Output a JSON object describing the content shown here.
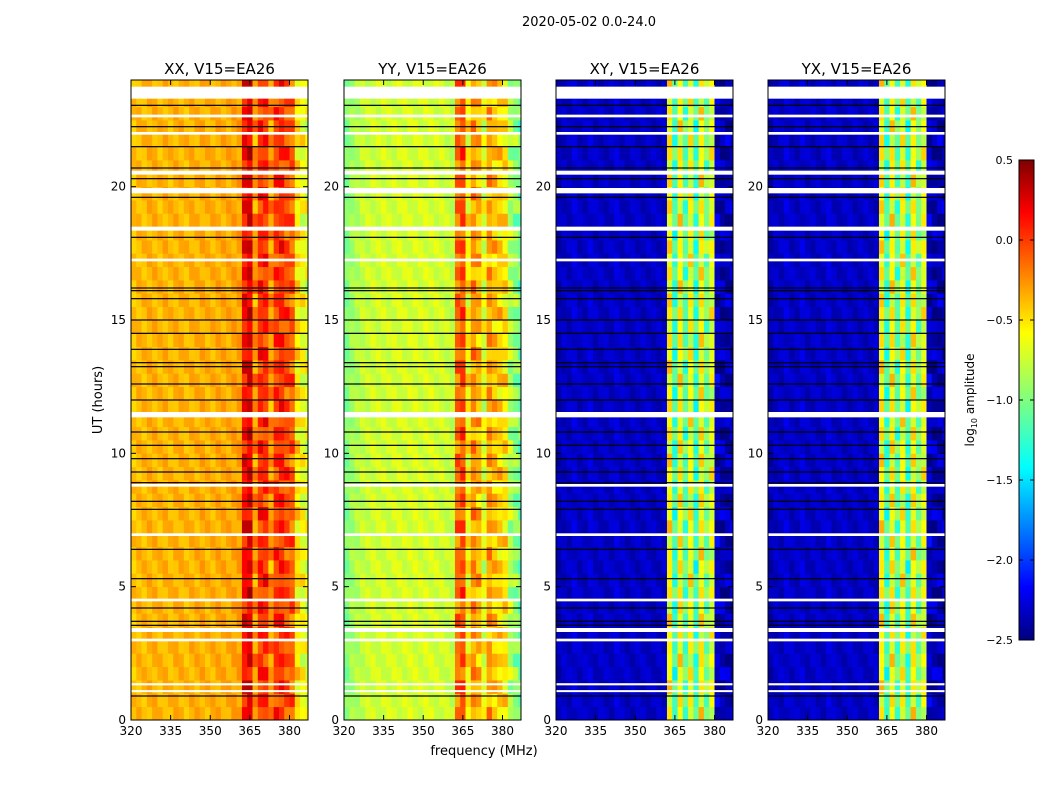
{
  "chart_data": {
    "type": "heatmap",
    "title": "2020-05-02 0.0-24.0",
    "xlabel": "frequency (MHz)",
    "ylabel": "UT (hours)",
    "xlim": [
      320,
      387
    ],
    "ylim": [
      0,
      24
    ],
    "xticks": [
      "320",
      "335",
      "350",
      "365",
      "380"
    ],
    "yticks": [
      "0",
      "5",
      "10",
      "15",
      "20"
    ],
    "colorbar": {
      "label": "log10 amplitude",
      "label_main": "log",
      "label_sub": "10",
      "label_rest": " amplitude",
      "range": [
        -2.5,
        0.5
      ],
      "ticks": [
        "0.5",
        "0.0",
        "−0.5",
        "−1.0",
        "−1.5",
        "−2.0",
        "−2.5"
      ],
      "colormap": "jet"
    },
    "frequency_bin_start": 320,
    "frequency_bin_width": 2,
    "time_bin_width": 0.5,
    "panels": [
      {
        "title": "XX, V15=EA26",
        "profile": [
          -0.45,
          -0.42,
          -0.42,
          -0.4,
          -0.4,
          -0.42,
          -0.4,
          -0.42,
          -0.4,
          -0.4,
          -0.42,
          -0.4,
          -0.4,
          -0.38,
          -0.4,
          -0.4,
          -0.38,
          -0.38,
          -0.38,
          -0.36,
          -0.35,
          0.1,
          0.2,
          -0.3,
          0.0,
          0.0,
          -0.3,
          -0.05,
          0.0,
          -0.1,
          -0.15,
          -0.55,
          -0.65,
          -0.7
        ]
      },
      {
        "title": "YY, V15=EA26",
        "profile": [
          -1.0,
          -0.9,
          -0.85,
          -0.8,
          -0.78,
          -0.76,
          -0.76,
          -0.75,
          -0.76,
          -0.75,
          -0.74,
          -0.75,
          -0.74,
          -0.74,
          -0.75,
          -0.74,
          -0.74,
          -0.75,
          -0.76,
          -0.78,
          -0.8,
          -0.2,
          -0.1,
          -0.6,
          -0.3,
          -0.4,
          -0.7,
          -0.35,
          -0.45,
          -0.5,
          -0.55,
          -0.85,
          -0.95,
          -1.05
        ]
      },
      {
        "title": "XY, V15=EA26",
        "profile": [
          -2.35,
          -2.3,
          -2.3,
          -2.25,
          -2.3,
          -2.3,
          -2.25,
          -2.3,
          -2.3,
          -2.3,
          -2.3,
          -2.25,
          -2.3,
          -2.3,
          -2.3,
          -2.3,
          -2.3,
          -2.3,
          -2.3,
          -2.3,
          -2.3,
          -0.6,
          -1.2,
          -0.6,
          -1.1,
          -0.65,
          -1.2,
          -0.6,
          -1.0,
          -0.7,
          -2.3,
          -2.35,
          -2.35,
          -2.35
        ]
      },
      {
        "title": "YX, V15=EA26",
        "profile": [
          -2.35,
          -2.3,
          -2.3,
          -2.25,
          -2.3,
          -2.3,
          -2.25,
          -2.3,
          -2.3,
          -2.3,
          -2.3,
          -2.25,
          -2.3,
          -2.3,
          -2.3,
          -2.3,
          -2.3,
          -2.3,
          -2.3,
          -2.3,
          -2.3,
          -0.6,
          -1.2,
          -0.6,
          -1.1,
          -0.65,
          -1.2,
          -0.6,
          -1.0,
          -0.7,
          -2.3,
          -2.35,
          -2.35,
          -2.35
        ]
      }
    ],
    "flagged_time_ranges_hours": [
      [
        23.3,
        23.75
      ],
      [
        22.6,
        22.7
      ],
      [
        21.95,
        22.05
      ],
      [
        20.45,
        20.6
      ],
      [
        19.75,
        19.95
      ],
      [
        18.35,
        18.5
      ],
      [
        17.2,
        17.3
      ],
      [
        11.35,
        11.55
      ],
      [
        8.75,
        8.85
      ],
      [
        6.9,
        7.0
      ],
      [
        4.45,
        4.55
      ],
      [
        3.3,
        3.45
      ],
      [
        2.95,
        3.05
      ],
      [
        1.3,
        1.38
      ],
      [
        1.05,
        1.12
      ]
    ],
    "black_line_times_hours": [
      23.05,
      22.25,
      21.5,
      20.7,
      20.3,
      19.6,
      18.1,
      16.2,
      16.1,
      15.8,
      15.0,
      14.5,
      13.9,
      13.4,
      13.25,
      12.6,
      12.0,
      10.8,
      10.3,
      9.8,
      9.3,
      8.9,
      8.2,
      7.9,
      6.4,
      5.3,
      4.2,
      3.7,
      3.55,
      0.9
    ]
  }
}
